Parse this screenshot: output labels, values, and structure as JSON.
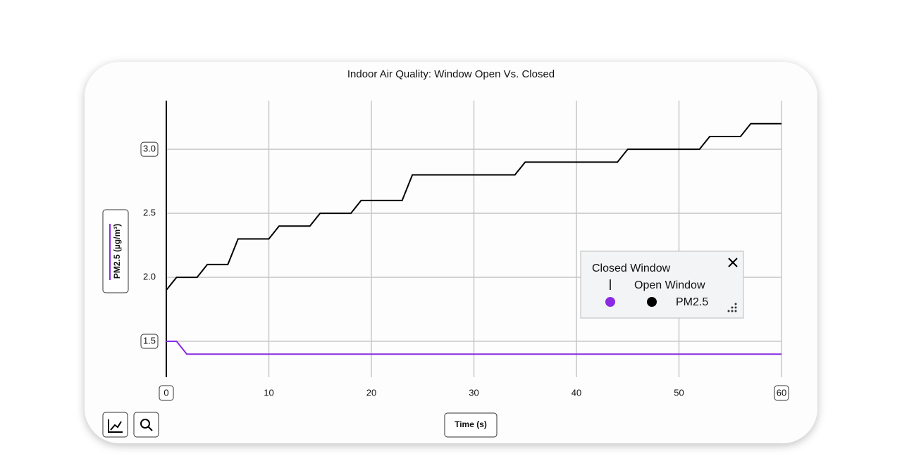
{
  "chart_data": {
    "type": "line",
    "title": "Indoor Air Quality: Window Open Vs. Closed",
    "x_label": "Time (s)",
    "y_label": "PM2.5 (µg/m³)",
    "legend_title": "PM2.5",
    "x": [
      0,
      1,
      2,
      3,
      4,
      5,
      6,
      7,
      8,
      9,
      10,
      11,
      12,
      13,
      14,
      15,
      16,
      17,
      18,
      19,
      20,
      21,
      22,
      23,
      24,
      25,
      26,
      27,
      28,
      29,
      30,
      31,
      32,
      33,
      34,
      35,
      36,
      37,
      38,
      39,
      40,
      41,
      42,
      43,
      44,
      45,
      46,
      47,
      48,
      49,
      50,
      51,
      52,
      53,
      54,
      55,
      56,
      57,
      58,
      59,
      60
    ],
    "series": [
      {
        "name": "Closed Window",
        "color": "#8a2be2",
        "values": [
          1.5,
          1.5,
          1.4,
          1.4,
          1.4,
          1.4,
          1.4,
          1.4,
          1.4,
          1.4,
          1.4,
          1.4,
          1.4,
          1.4,
          1.4,
          1.4,
          1.4,
          1.4,
          1.4,
          1.4,
          1.4,
          1.4,
          1.4,
          1.4,
          1.4,
          1.4,
          1.4,
          1.4,
          1.4,
          1.4,
          1.4,
          1.4,
          1.4,
          1.4,
          1.4,
          1.4,
          1.4,
          1.4,
          1.4,
          1.4,
          1.4,
          1.4,
          1.4,
          1.4,
          1.4,
          1.4,
          1.4,
          1.4,
          1.4,
          1.4,
          1.4,
          1.4,
          1.4,
          1.4,
          1.4,
          1.4,
          1.4,
          1.4,
          1.4,
          1.4,
          1.4
        ]
      },
      {
        "name": "Open Window",
        "color": "#000000",
        "values": [
          1.9,
          2.0,
          2.0,
          2.0,
          2.1,
          2.1,
          2.1,
          2.3,
          2.3,
          2.3,
          2.3,
          2.4,
          2.4,
          2.4,
          2.4,
          2.5,
          2.5,
          2.5,
          2.5,
          2.6,
          2.6,
          2.6,
          2.6,
          2.6,
          2.8,
          2.8,
          2.8,
          2.8,
          2.8,
          2.8,
          2.8,
          2.8,
          2.8,
          2.8,
          2.8,
          2.9,
          2.9,
          2.9,
          2.9,
          2.9,
          2.9,
          2.9,
          2.9,
          2.9,
          2.9,
          3.0,
          3.0,
          3.0,
          3.0,
          3.0,
          3.0,
          3.0,
          3.0,
          3.1,
          3.1,
          3.1,
          3.1,
          3.2,
          3.2,
          3.2,
          3.2
        ]
      }
    ],
    "xlim": [
      0,
      60
    ],
    "xticks": [
      0,
      10,
      20,
      30,
      40,
      50,
      60
    ],
    "ylim": [
      1.22,
      3.38
    ],
    "yticks": [
      1.5,
      {
        "value": 2,
        "label": "2.0"
      },
      2.5,
      {
        "value": 3,
        "label": "3.0"
      }
    ],
    "grid": true
  }
}
